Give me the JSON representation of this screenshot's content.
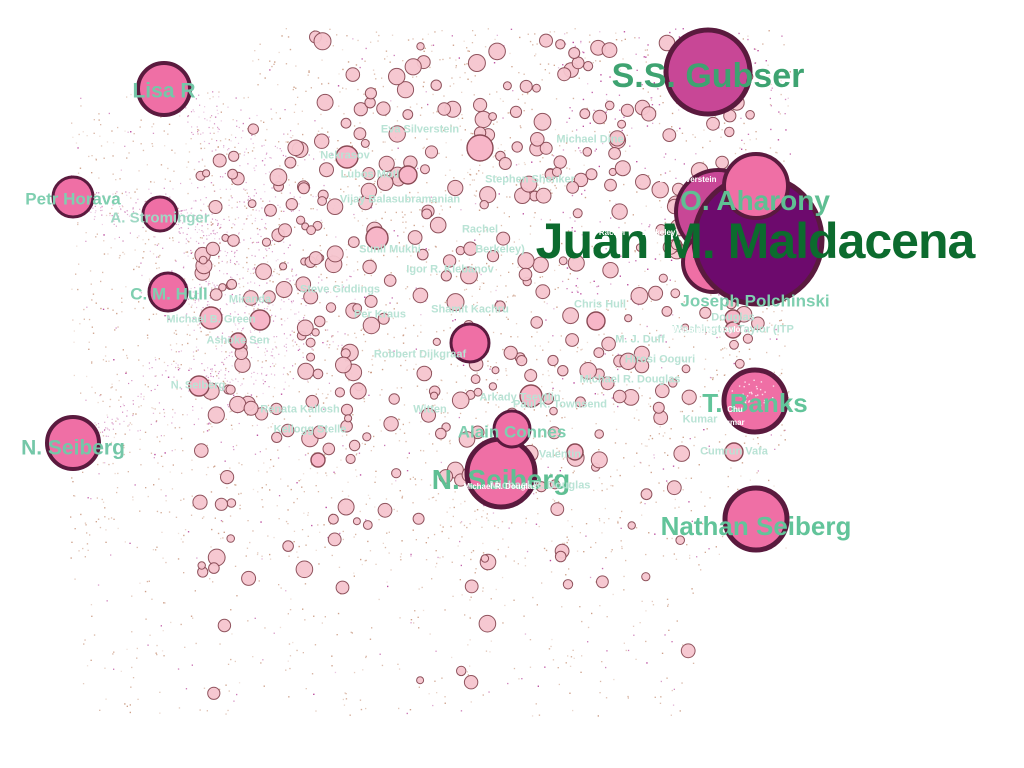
{
  "graph": {
    "colors": {
      "background": "#ffffff",
      "small_node_fill": "#f6c6cf",
      "small_node_stroke": "#8a4a55",
      "hub_fill_pink": "#ef6fa5",
      "hub_fill_magenta": "#c84796",
      "hub_fill_purple": "#6d0a6d",
      "hub_stroke": "#5a1a3e",
      "dust_tan": "#c8957c",
      "dust_magenta": "#b0308e"
    },
    "labels": {
      "maldacena": "Juan M. Maldacena",
      "gubser": "S.S. Gubser",
      "aharony": "O. Aharony",
      "polchinski": "Joseph Polchinski",
      "banks": "T. Banks",
      "nathan_seiberg": "Nathan Seiberg",
      "n_seiberg_center": "N. Seiberg",
      "n_seiberg_left": "N. Seiberg",
      "alain_connes": "Alain Connes",
      "lisa_r": "Lisa R",
      "petr_horava": "Petr Horava",
      "strominger": "A. Strominger",
      "hull": "C. M. Hull",
      "michael_green": "Michael B. Green",
      "tiny_1": "Michael R. Douglas",
      "tiny_2": "Washington Taylor (ITP",
      "tiny_3": "Douglas",
      "tiny_4": "Hirosi Ooguri",
      "tiny_5": "Berkeley)",
      "tiny_6": "Rachel",
      "tiny_7": "Witten",
      "tiny_8": "N. Seiberg",
      "tiny_9": "Kumar",
      "tiny_10": "Cumrun Vafa",
      "tiny_11": "Michael R. Douglas",
      "tiny_12": "Ashoke Sen",
      "tiny_13": "Nekrasov",
      "tiny_14": "Lubos Motl",
      "tiny_15": "Vijay Balasubramanian",
      "tiny_16": "Sunil Mukhi",
      "tiny_17": "Igor R. Klebanov",
      "tiny_18": "Per Kraus",
      "tiny_19": "Shamit Kachru",
      "tiny_20": "Robbert Dijkgraaf",
      "tiny_21": "Paul K. Townsend",
      "tiny_22": "Arkady Tseytlin",
      "tiny_23": "Valentin",
      "tiny_24": "Renata Kallosh",
      "tiny_25": "Kellogg Stelle",
      "tiny_26": "Chris Hull",
      "tiny_27": "M. J. Duff",
      "tiny_28": "Michael Dine",
      "tiny_29": "Stephen Shenker",
      "tiny_30": "Eva Silverstein",
      "tiny_31": "Steve Giddings",
      "tiny_32": "Miranda",
      "white_1": "Eva Silverstein",
      "white_2": "Rachel",
      "white_3": "Berkeley)",
      "white_4": "Michael R. Douglas",
      "white_5": "Washington Taylor",
      "white_6": "Chu",
      "white_7": "Kumar"
    }
  }
}
